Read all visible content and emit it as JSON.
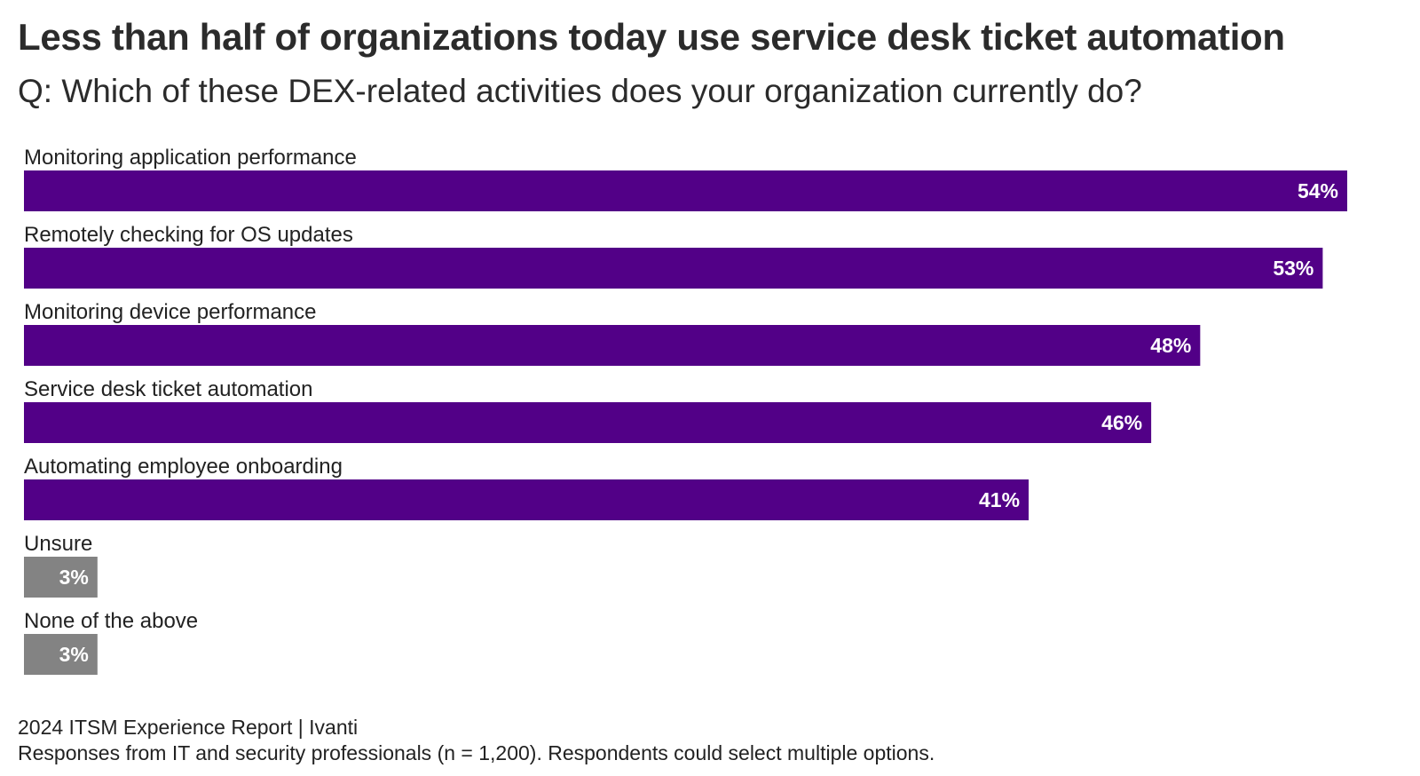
{
  "title": "Less than half of organizations today use service desk ticket automation",
  "subtitle": "Q: Which of these DEX-related activities does your organization currently do?",
  "chart_data": {
    "type": "bar",
    "orientation": "horizontal",
    "categories": [
      "Monitoring application performance",
      "Remotely checking for OS updates",
      "Monitoring device performance",
      "Service desk ticket automation",
      "Automating employee onboarding",
      "Unsure",
      "None of the above"
    ],
    "values": [
      54,
      53,
      48,
      46,
      41,
      3,
      3
    ],
    "value_labels": [
      "54%",
      "53%",
      "48%",
      "46%",
      "41%",
      "3%",
      "3%"
    ],
    "unit": "%",
    "colors": [
      "#520087",
      "#520087",
      "#520087",
      "#520087",
      "#520087",
      "#838383",
      "#838383"
    ],
    "label_color": "#ffffff",
    "xlim": [
      0,
      54
    ],
    "grid": false,
    "legend": "none"
  },
  "footer": {
    "source": "2024 ITSM Experience Report | Ivanti",
    "note": "Responses from IT and security professionals (n = 1,200). Respondents could select multiple options."
  }
}
